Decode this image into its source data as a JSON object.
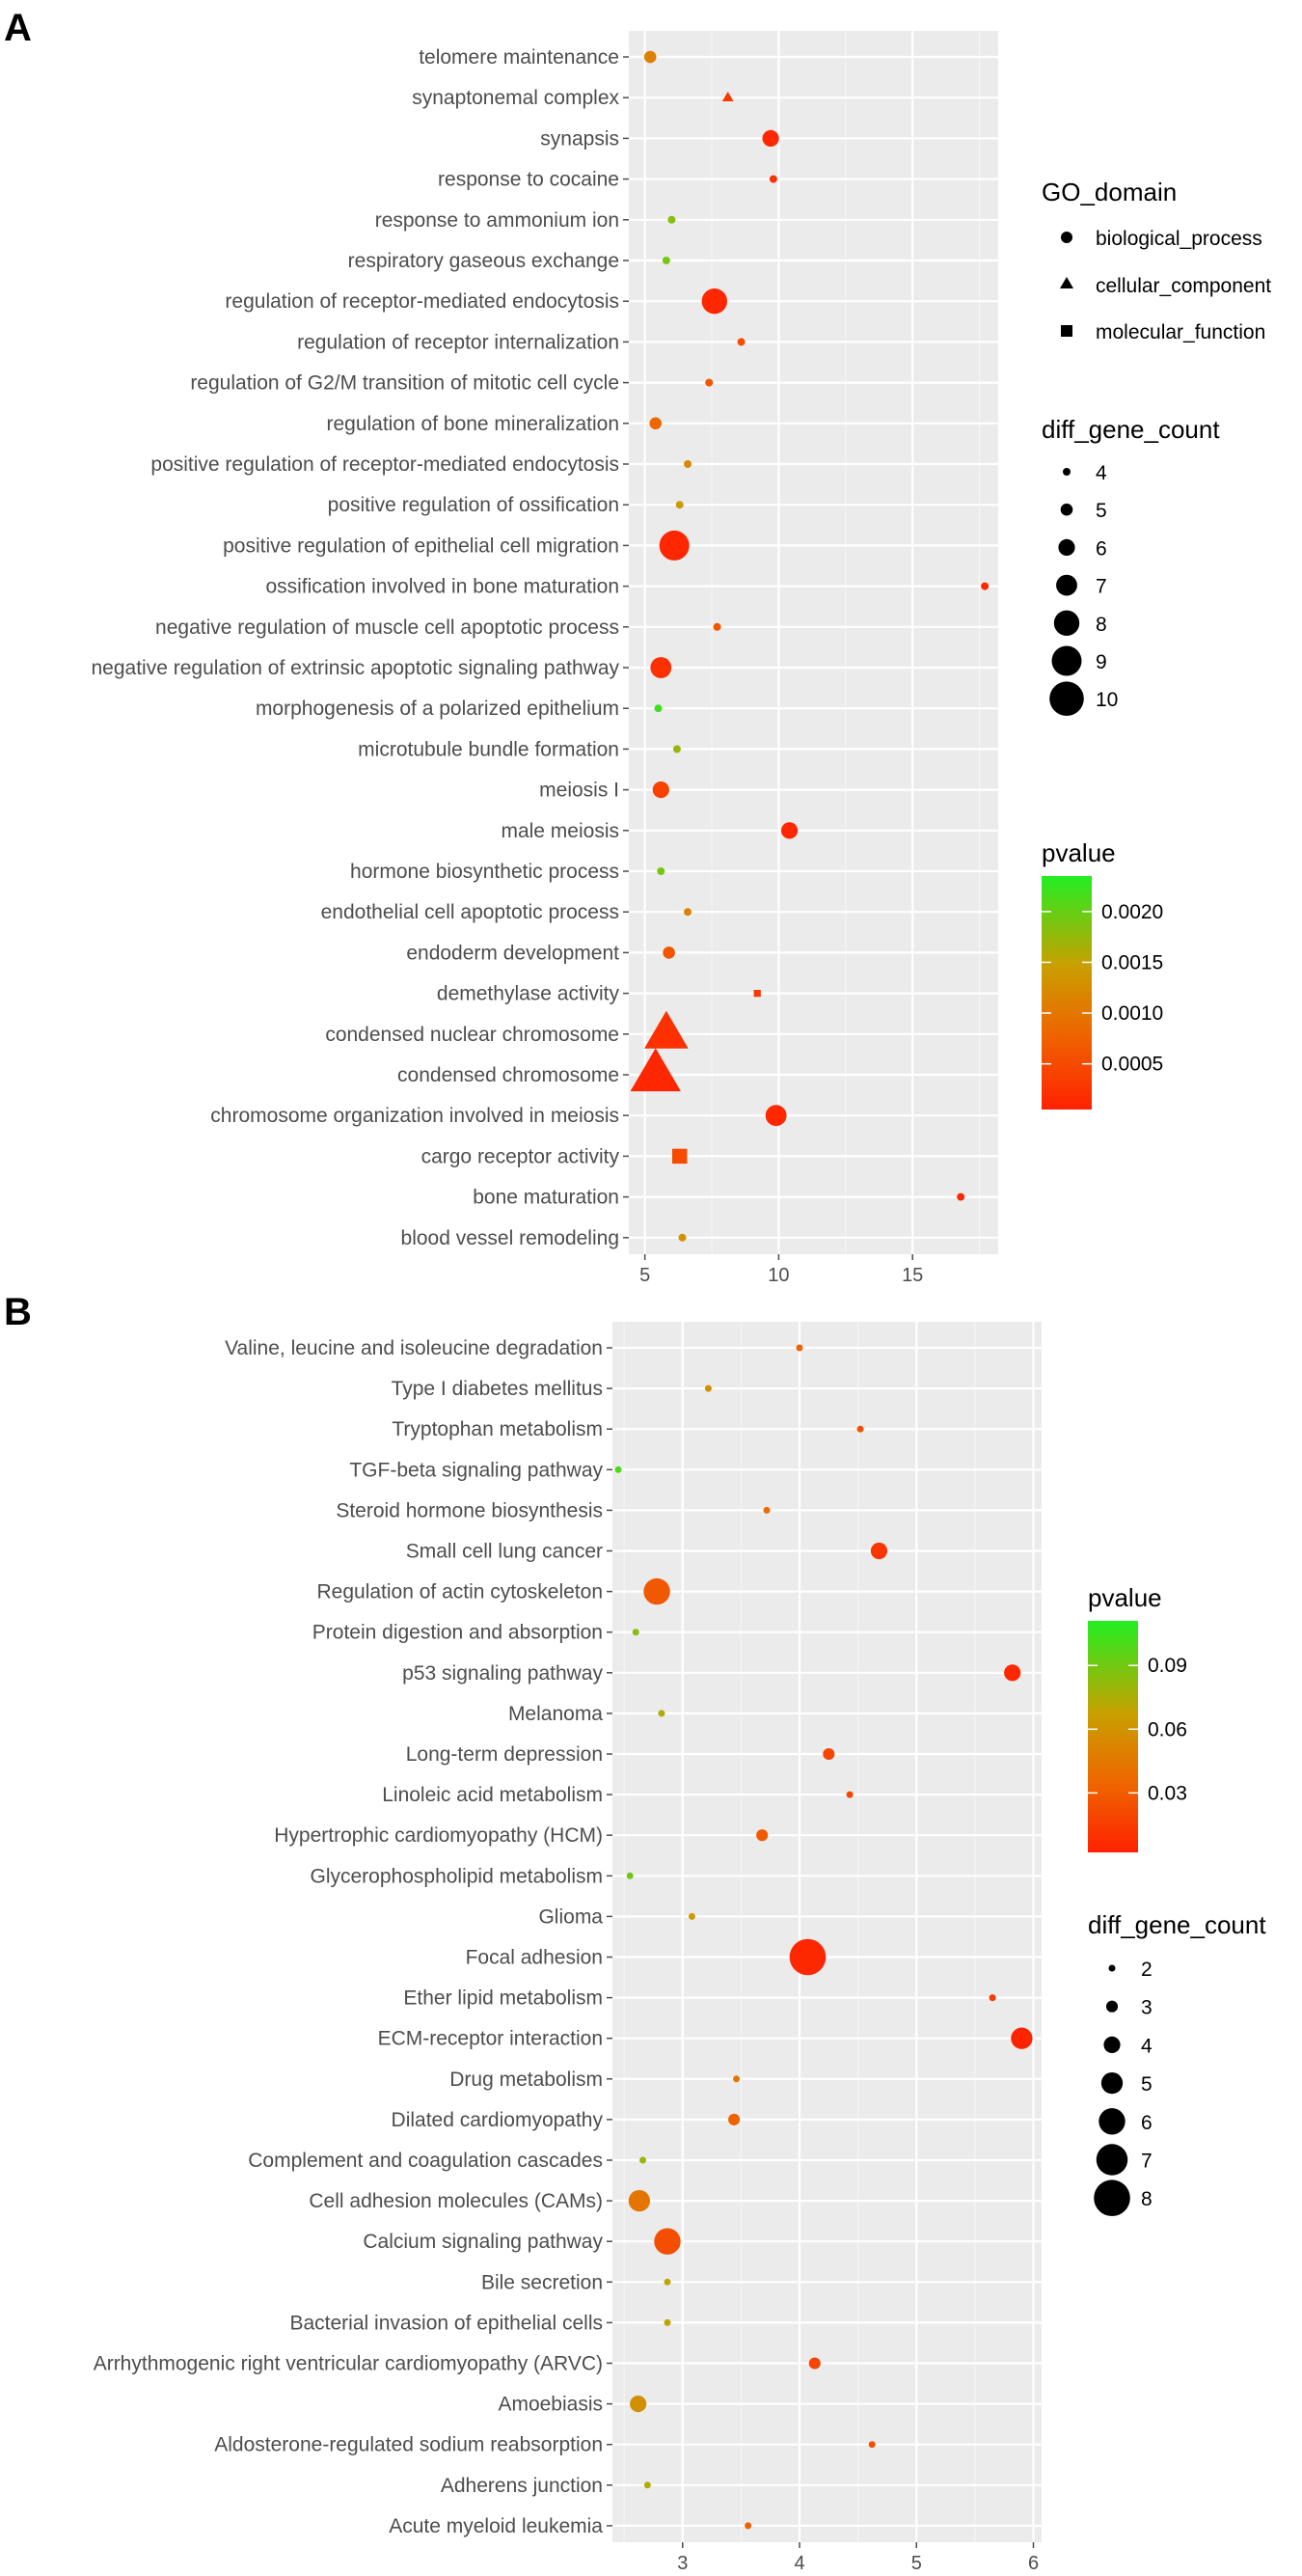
{
  "chart_data": [
    {
      "panel": "A",
      "type": "scatter",
      "xlabel": "",
      "ylabel": "",
      "xlim": [
        4.4,
        18.2
      ],
      "xticks": [
        5,
        10,
        15
      ],
      "categories": [
        "telomere maintenance",
        "synaptonemal complex",
        "synapsis",
        "response to cocaine",
        "response to ammonium ion",
        "respiratory gaseous exchange",
        "regulation of receptor-mediated endocytosis",
        "regulation of receptor internalization",
        "regulation of G2/M transition of mitotic cell cycle",
        "regulation of bone mineralization",
        "positive regulation of receptor-mediated endocytosis",
        "positive regulation of ossification",
        "positive regulation of epithelial cell migration",
        "ossification involved in bone maturation",
        "negative regulation of muscle cell apoptotic process",
        "negative regulation of extrinsic apoptotic signaling pathway",
        "morphogenesis of a polarized epithelium",
        "microtubule bundle formation",
        "meiosis I",
        "male meiosis",
        "hormone biosynthetic process",
        "endothelial cell apoptotic process",
        "endoderm development",
        "demethylase activity",
        "condensed nuclear chromosome",
        "condensed chromosome",
        "chromosome organization involved in meiosis",
        "cargo receptor activity",
        "bone maturation",
        "blood vessel remodeling"
      ],
      "points": [
        {
          "term": "telomere maintenance",
          "x": 5.2,
          "count": 5,
          "pvalue": 0.0011,
          "domain": "biological_process"
        },
        {
          "term": "synaptonemal complex",
          "x": 8.1,
          "count": 4,
          "pvalue": 0.0003,
          "domain": "cellular_component"
        },
        {
          "term": "synapsis",
          "x": 9.7,
          "count": 6,
          "pvalue": 0.0001,
          "domain": "biological_process"
        },
        {
          "term": "response to cocaine",
          "x": 9.8,
          "count": 4,
          "pvalue": 0.0002,
          "domain": "biological_process"
        },
        {
          "term": "response to ammonium ion",
          "x": 6.0,
          "count": 4,
          "pvalue": 0.0018,
          "domain": "biological_process"
        },
        {
          "term": "respiratory gaseous exchange",
          "x": 5.8,
          "count": 4,
          "pvalue": 0.0019,
          "domain": "biological_process"
        },
        {
          "term": "regulation of receptor-mediated endocytosis",
          "x": 7.6,
          "count": 8,
          "pvalue": 0.0001,
          "domain": "biological_process"
        },
        {
          "term": "regulation of receptor internalization",
          "x": 8.6,
          "count": 4,
          "pvalue": 0.0005,
          "domain": "biological_process"
        },
        {
          "term": "regulation of G2/M transition of mitotic cell cycle",
          "x": 7.4,
          "count": 4,
          "pvalue": 0.0006,
          "domain": "biological_process"
        },
        {
          "term": "regulation of bone mineralization",
          "x": 5.4,
          "count": 5,
          "pvalue": 0.0008,
          "domain": "biological_process"
        },
        {
          "term": "positive regulation of receptor-mediated endocytosis",
          "x": 6.6,
          "count": 4,
          "pvalue": 0.0012,
          "domain": "biological_process"
        },
        {
          "term": "positive regulation of ossification",
          "x": 6.3,
          "count": 4,
          "pvalue": 0.0014,
          "domain": "biological_process"
        },
        {
          "term": "positive regulation of epithelial cell migration",
          "x": 6.1,
          "count": 9,
          "pvalue": 0.0001,
          "domain": "biological_process"
        },
        {
          "term": "ossification involved in bone maturation",
          "x": 17.7,
          "count": 4,
          "pvalue": 0.0001,
          "domain": "biological_process"
        },
        {
          "term": "negative regulation of muscle cell apoptotic process",
          "x": 7.7,
          "count": 4,
          "pvalue": 0.0006,
          "domain": "biological_process"
        },
        {
          "term": "negative regulation of extrinsic apoptotic signaling pathway",
          "x": 5.6,
          "count": 7,
          "pvalue": 0.0002,
          "domain": "biological_process"
        },
        {
          "term": "morphogenesis of a polarized epithelium",
          "x": 5.5,
          "count": 4,
          "pvalue": 0.0022,
          "domain": "biological_process"
        },
        {
          "term": "microtubule bundle formation",
          "x": 6.2,
          "count": 4,
          "pvalue": 0.0017,
          "domain": "biological_process"
        },
        {
          "term": "meiosis I",
          "x": 5.6,
          "count": 6,
          "pvalue": 0.0004,
          "domain": "biological_process"
        },
        {
          "term": "male meiosis",
          "x": 10.4,
          "count": 6,
          "pvalue": 0.0001,
          "domain": "biological_process"
        },
        {
          "term": "hormone biosynthetic process",
          "x": 5.6,
          "count": 4,
          "pvalue": 0.0019,
          "domain": "biological_process"
        },
        {
          "term": "endothelial cell apoptotic process",
          "x": 6.6,
          "count": 4,
          "pvalue": 0.0011,
          "domain": "biological_process"
        },
        {
          "term": "endoderm development",
          "x": 5.9,
          "count": 5,
          "pvalue": 0.0006,
          "domain": "biological_process"
        },
        {
          "term": "demethylase activity",
          "x": 9.2,
          "count": 4,
          "pvalue": 0.0003,
          "domain": "molecular_function"
        },
        {
          "term": "condensed nuclear chromosome",
          "x": 5.8,
          "count": 9,
          "pvalue": 0.0002,
          "domain": "cellular_component"
        },
        {
          "term": "condensed chromosome",
          "x": 5.4,
          "count": 10,
          "pvalue": 0.0001,
          "domain": "cellular_component"
        },
        {
          "term": "chromosome organization involved in meiosis",
          "x": 9.9,
          "count": 7,
          "pvalue": 0.0001,
          "domain": "biological_process"
        },
        {
          "term": "cargo receptor activity",
          "x": 6.3,
          "count": 6,
          "pvalue": 0.0005,
          "domain": "molecular_function"
        },
        {
          "term": "bone maturation",
          "x": 16.8,
          "count": 4,
          "pvalue": 0.0001,
          "domain": "biological_process"
        },
        {
          "term": "blood vessel remodeling",
          "x": 6.4,
          "count": 4,
          "pvalue": 0.0013,
          "domain": "biological_process"
        }
      ],
      "legend_shape": {
        "title": "GO_domain",
        "entries": [
          "biological_process",
          "cellular_component",
          "molecular_function"
        ]
      },
      "legend_size": {
        "title": "diff_gene_count",
        "entries": [
          4,
          5,
          6,
          7,
          8,
          9,
          10
        ]
      },
      "legend_color": {
        "title": "pvalue",
        "range": [
          5e-05,
          0.00235
        ],
        "ticks": [
          0.002,
          0.0015,
          0.001,
          0.0005
        ],
        "tick_labels": [
          "0.0020",
          "0.0015",
          "0.0010",
          "0.0005"
        ]
      }
    },
    {
      "panel": "B",
      "type": "scatter",
      "xlabel": "",
      "ylabel": "",
      "xlim": [
        2.4,
        6.07
      ],
      "xticks": [
        3,
        4,
        5,
        6
      ],
      "categories": [
        "Valine, leucine and isoleucine degradation",
        "Type I diabetes mellitus",
        "Tryptophan metabolism",
        "TGF-beta signaling pathway",
        "Steroid hormone biosynthesis",
        "Small cell lung cancer",
        "Regulation of actin cytoskeleton",
        "Protein digestion and absorption",
        "p53 signaling pathway",
        "Melanoma",
        "Long-term depression",
        "Linoleic acid metabolism",
        "Hypertrophic cardiomyopathy (HCM)",
        "Glycerophospholipid metabolism",
        "Glioma",
        "Focal adhesion",
        "Ether lipid metabolism",
        "ECM-receptor interaction",
        "Drug metabolism",
        "Dilated cardiomyopathy",
        "Complement and coagulation cascades",
        "Cell adhesion molecules (CAMs)",
        "Calcium signaling pathway",
        "Bile secretion",
        "Bacterial invasion of epithelial cells",
        "Arrhythmogenic right ventricular cardiomyopathy (ARVC)",
        "Amoebiasis",
        "Aldosterone-regulated sodium reabsorption",
        "Adherens junction",
        "Acute myeloid leukemia"
      ],
      "points": [
        {
          "term": "Valine, leucine and isoleucine degradation",
          "x": 4.0,
          "count": 2,
          "pvalue": 0.035
        },
        {
          "term": "Type I diabetes mellitus",
          "x": 3.22,
          "count": 2,
          "pvalue": 0.06
        },
        {
          "term": "Tryptophan metabolism",
          "x": 4.52,
          "count": 2,
          "pvalue": 0.025
        },
        {
          "term": "TGF-beta signaling pathway",
          "x": 2.45,
          "count": 2,
          "pvalue": 0.1
        },
        {
          "term": "Steroid hormone biosynthesis",
          "x": 3.72,
          "count": 2,
          "pvalue": 0.04
        },
        {
          "term": "Small cell lung cancer",
          "x": 4.68,
          "count": 4,
          "pvalue": 0.012
        },
        {
          "term": "Regulation of actin cytoskeleton",
          "x": 2.78,
          "count": 6,
          "pvalue": 0.03
        },
        {
          "term": "Protein digestion and absorption",
          "x": 2.6,
          "count": 2,
          "pvalue": 0.085
        },
        {
          "term": "p53 signaling pathway",
          "x": 5.82,
          "count": 4,
          "pvalue": 0.005
        },
        {
          "term": "Melanoma",
          "x": 2.82,
          "count": 2,
          "pvalue": 0.075
        },
        {
          "term": "Long-term depression",
          "x": 4.25,
          "count": 3,
          "pvalue": 0.02
        },
        {
          "term": "Linoleic acid metabolism",
          "x": 4.43,
          "count": 2,
          "pvalue": 0.02
        },
        {
          "term": "Hypertrophic cardiomyopathy (HCM)",
          "x": 3.68,
          "count": 3,
          "pvalue": 0.03
        },
        {
          "term": "Glycerophospholipid metabolism",
          "x": 2.55,
          "count": 2,
          "pvalue": 0.09
        },
        {
          "term": "Glioma",
          "x": 3.08,
          "count": 2,
          "pvalue": 0.065
        },
        {
          "term": "Focal adhesion",
          "x": 4.07,
          "count": 8,
          "pvalue": 0.005
        },
        {
          "term": "Ether lipid metabolism",
          "x": 5.65,
          "count": 2,
          "pvalue": 0.015
        },
        {
          "term": "ECM-receptor interaction",
          "x": 5.9,
          "count": 5,
          "pvalue": 0.003
        },
        {
          "term": "Drug metabolism",
          "x": 3.46,
          "count": 2,
          "pvalue": 0.045
        },
        {
          "term": "Dilated cardiomyopathy",
          "x": 3.44,
          "count": 3,
          "pvalue": 0.035
        },
        {
          "term": "Complement and coagulation cascades",
          "x": 2.66,
          "count": 2,
          "pvalue": 0.08
        },
        {
          "term": "Cell adhesion molecules (CAMs)",
          "x": 2.63,
          "count": 5,
          "pvalue": 0.045
        },
        {
          "term": "Calcium signaling pathway",
          "x": 2.87,
          "count": 6,
          "pvalue": 0.025
        },
        {
          "term": "Bile secretion",
          "x": 2.87,
          "count": 2,
          "pvalue": 0.07
        },
        {
          "term": "Bacterial invasion of epithelial cells",
          "x": 2.87,
          "count": 2,
          "pvalue": 0.07
        },
        {
          "term": "Arrhythmogenic right ventricular cardiomyopathy (ARVC)",
          "x": 4.13,
          "count": 3,
          "pvalue": 0.02
        },
        {
          "term": "Amoebiasis",
          "x": 2.62,
          "count": 4,
          "pvalue": 0.06
        },
        {
          "term": "Aldosterone-regulated sodium reabsorption",
          "x": 4.62,
          "count": 2,
          "pvalue": 0.025
        },
        {
          "term": "Adherens junction",
          "x": 2.7,
          "count": 2,
          "pvalue": 0.075
        },
        {
          "term": "Acute myeloid leukemia",
          "x": 3.56,
          "count": 2,
          "pvalue": 0.035
        }
      ],
      "legend_color": {
        "title": "pvalue",
        "range": [
          0.002,
          0.111
        ],
        "ticks": [
          0.09,
          0.06,
          0.03
        ],
        "tick_labels": [
          "0.09",
          "0.06",
          "0.03"
        ]
      },
      "legend_size": {
        "title": "diff_gene_count",
        "entries": [
          2,
          3,
          4,
          5,
          6,
          7,
          8
        ]
      }
    }
  ],
  "panels": {
    "a_label": "A",
    "b_label": "B"
  },
  "colors": {
    "panel_bg": "#ebebeb",
    "grid": "#ffffff",
    "low_p": "#ff2200",
    "mid_p": "#c8a000",
    "high_p": "#22ee22"
  }
}
